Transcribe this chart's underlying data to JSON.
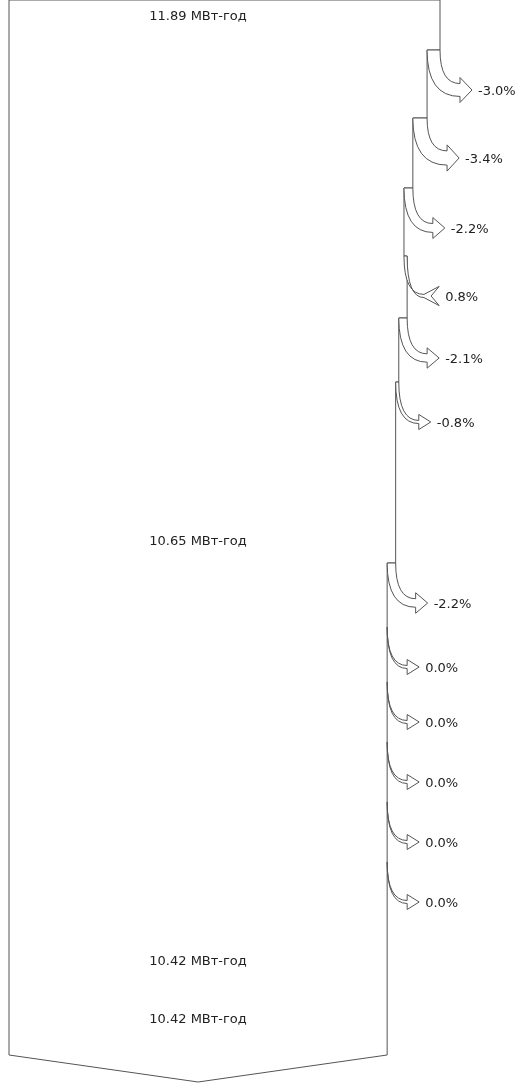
{
  "chart_data": {
    "type": "other",
    "values": [
      -3.0,
      -3.4,
      -2.2,
      0.8,
      -2.1,
      -0.8,
      -2.2,
      0.0,
      0.0,
      0.0,
      0.0,
      0.0
    ],
    "value_labels": [
      "-3.0%",
      "-3.4%",
      "-2.2%",
      "0.8%",
      "-2.1%",
      "-0.8%",
      "-2.2%",
      "0.0%",
      "0.0%",
      "0.0%",
      "0.0%",
      "0.0%"
    ],
    "annotations": [
      "11.89 МВт-год",
      "10.65 МВт-год",
      "10.42 МВт-год",
      "10.42 МВт-год"
    ]
  }
}
